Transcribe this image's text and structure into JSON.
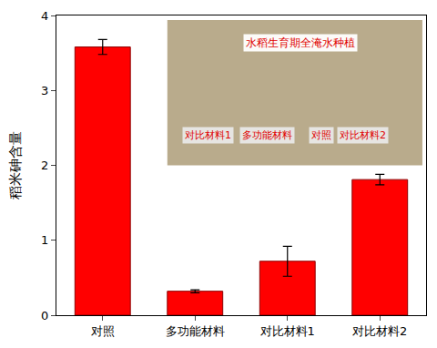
{
  "chart_data": {
    "type": "bar",
    "y_label": "稻米砷含量",
    "categories": [
      "对照",
      "多功能材料",
      "对比材料1",
      "对比材料2"
    ],
    "values": [
      3.58,
      0.32,
      0.72,
      1.81
    ],
    "errors": [
      0.1,
      0.02,
      0.2,
      0.07
    ],
    "color": "#ff0000",
    "ylim": [
      0,
      4
    ],
    "yticks": [
      0,
      1,
      2,
      3,
      4
    ],
    "grid": false,
    "annotations": [
      "水稻生育期全淹水种植",
      "对比材料1",
      "多功能材料",
      "对照",
      "对比材料2"
    ]
  }
}
